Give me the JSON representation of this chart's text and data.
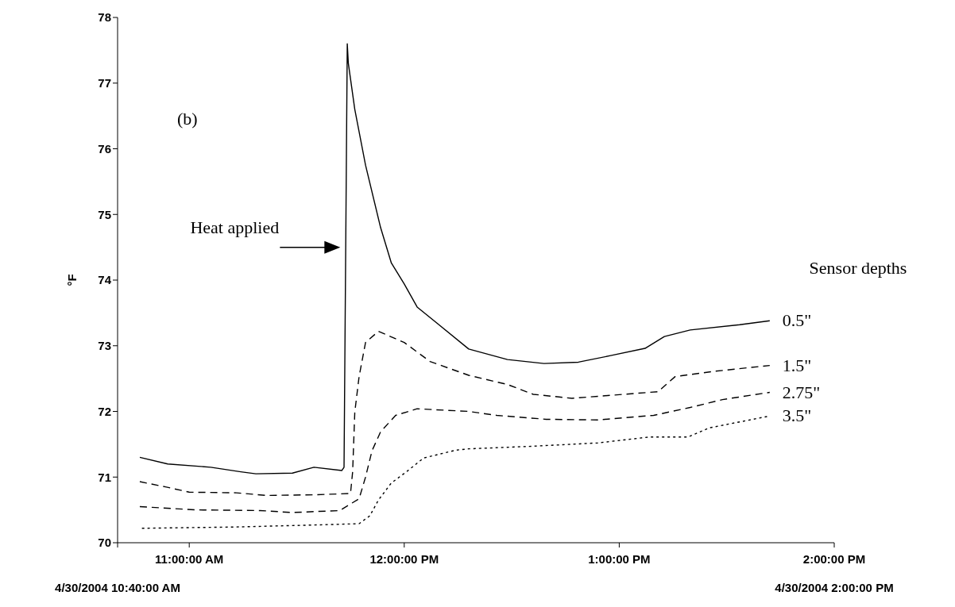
{
  "chart_data": {
    "type": "line",
    "ylabel": "°F",
    "legend_title": "Sensor depths",
    "annotations": [
      "(b)",
      "Heat applied",
      "4/30/2004 10:40:00 AM",
      "4/30/2004 2:00:00 PM"
    ],
    "xlim": [
      10.6667,
      14
    ],
    "ylim": [
      70,
      78
    ],
    "yticks": [
      70,
      71,
      72,
      73,
      74,
      75,
      76,
      77,
      78
    ],
    "xticks": [
      {
        "value": 10.6667,
        "label": null
      },
      {
        "value": 11,
        "label": "11:00:00 AM"
      },
      {
        "value": 12,
        "label": "12:00:00 PM"
      },
      {
        "value": 13,
        "label": "1:00:00 PM"
      },
      {
        "value": 14,
        "label": "2:00:00 PM"
      }
    ],
    "series": [
      {
        "name": "0.5\"",
        "color": "#000000",
        "line_style": "solid",
        "x": [
          10.77,
          10.9,
          11.1,
          11.24,
          11.31,
          11.48,
          11.58,
          11.71,
          11.72,
          11.735,
          11.74,
          11.77,
          11.82,
          11.89,
          11.94,
          12.0,
          12.06,
          12.15,
          12.3,
          12.48,
          12.65,
          12.81,
          12.96,
          13.12,
          13.21,
          13.33,
          13.56,
          13.7
        ],
        "values": [
          71.3,
          71.2,
          71.15,
          71.08,
          71.05,
          71.06,
          71.15,
          71.1,
          71.15,
          77.6,
          77.3,
          76.6,
          75.75,
          74.8,
          74.26,
          73.94,
          73.59,
          73.35,
          72.95,
          72.79,
          72.73,
          72.75,
          72.85,
          72.96,
          73.14,
          73.24,
          73.32,
          73.38
        ]
      },
      {
        "name": "1.5\"",
        "color": "#000000",
        "line_style": "dashed",
        "x": [
          10.77,
          10.89,
          11.0,
          11.22,
          11.36,
          11.58,
          11.75,
          11.76,
          11.77,
          11.79,
          11.82,
          11.88,
          12.0,
          12.12,
          12.3,
          12.48,
          12.6,
          12.78,
          13.02,
          13.18,
          13.26,
          13.44,
          13.7
        ],
        "values": [
          70.93,
          70.85,
          70.77,
          70.76,
          70.72,
          70.73,
          70.75,
          71.08,
          71.99,
          72.53,
          73.05,
          73.22,
          73.05,
          72.76,
          72.55,
          72.41,
          72.26,
          72.2,
          72.26,
          72.3,
          72.53,
          72.61,
          72.7
        ]
      },
      {
        "name": "2.75\"",
        "color": "#000000",
        "line_style": "dashed",
        "x": [
          10.77,
          11.03,
          11.33,
          11.48,
          11.7,
          11.79,
          11.82,
          11.85,
          11.89,
          11.96,
          12.06,
          12.3,
          12.43,
          12.66,
          12.9,
          13.16,
          13.33,
          13.48,
          13.7
        ],
        "values": [
          70.55,
          70.5,
          70.49,
          70.46,
          70.49,
          70.67,
          71.0,
          71.4,
          71.69,
          71.94,
          72.04,
          72.0,
          71.94,
          71.88,
          71.87,
          71.94,
          72.06,
          72.18,
          72.29
        ]
      },
      {
        "name": "3.5\"",
        "color": "#000000",
        "line_style": "dotted",
        "x": [
          10.78,
          11.22,
          11.58,
          11.79,
          11.84,
          11.88,
          11.94,
          12.01,
          12.09,
          12.24,
          12.3,
          12.6,
          12.9,
          13.14,
          13.32,
          13.42,
          13.7
        ],
        "values": [
          70.22,
          70.24,
          70.27,
          70.29,
          70.41,
          70.65,
          70.91,
          71.08,
          71.29,
          71.41,
          71.43,
          71.47,
          71.52,
          71.61,
          71.61,
          71.75,
          71.93
        ]
      }
    ]
  }
}
